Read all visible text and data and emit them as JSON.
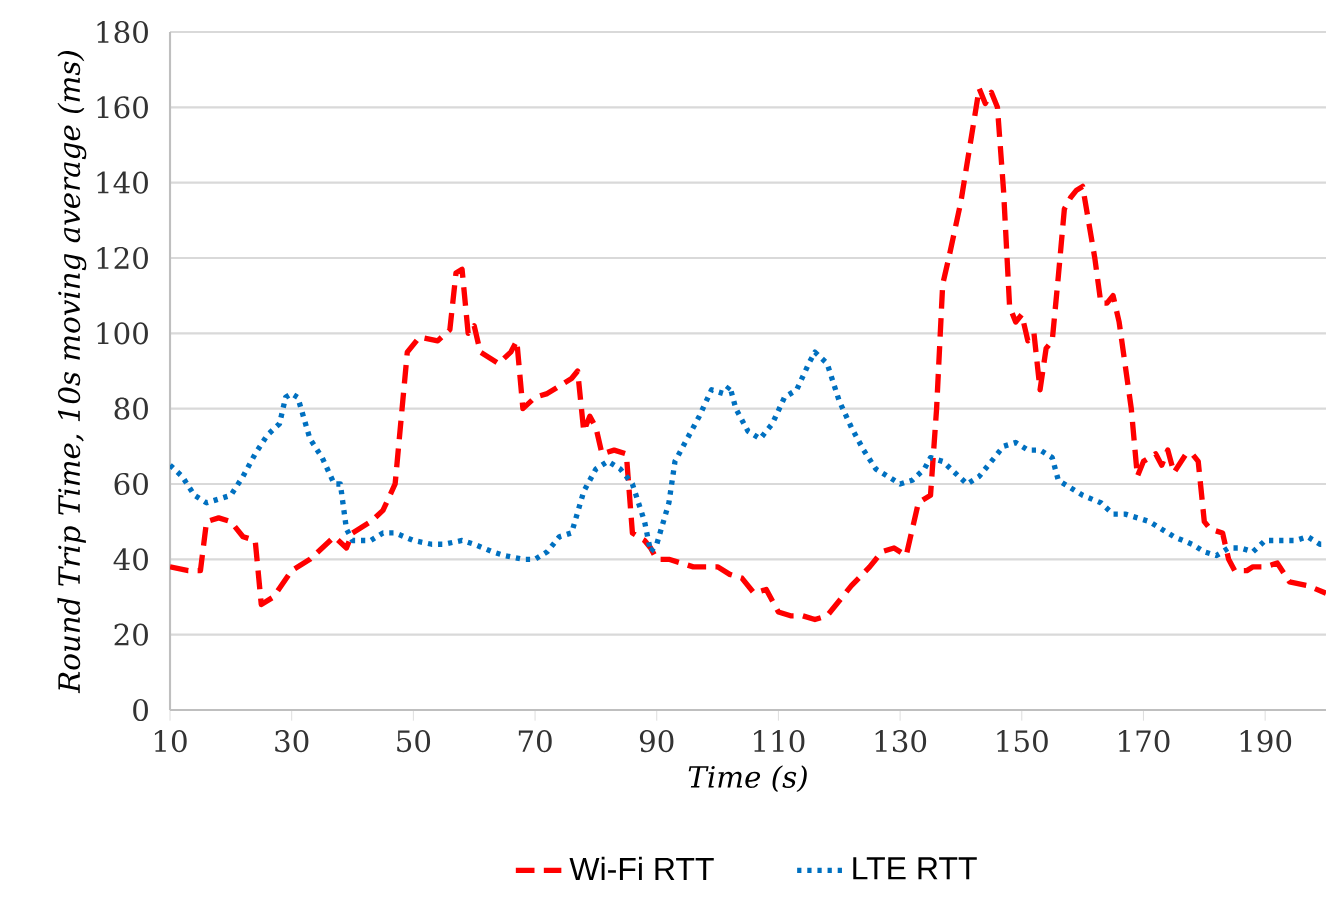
{
  "chart_data": {
    "type": "line",
    "xlabel": "Time (s)",
    "ylabel": "Round Trip Time, 10s moving average (ms)",
    "xlim": [
      10,
      200
    ],
    "xticks": [
      10,
      30,
      50,
      70,
      90,
      110,
      130,
      150,
      170,
      190
    ],
    "ylim": [
      0,
      180
    ],
    "yticks": [
      0,
      20,
      40,
      60,
      80,
      100,
      120,
      140,
      160,
      180
    ],
    "grid": "y",
    "legend": "bottom",
    "marker": "none",
    "series": [
      {
        "name": "Wi-Fi RTT",
        "color": "#ff0000",
        "line_style": "dashed",
        "x": [
          10,
          13,
          15,
          16,
          18,
          20,
          22,
          24,
          25,
          27,
          30,
          33,
          35,
          37,
          39,
          40,
          43,
          45,
          47,
          49,
          51,
          54,
          56,
          57,
          58,
          59,
          60,
          61,
          64,
          66,
          67,
          68,
          70,
          72,
          74,
          76,
          77,
          78,
          79,
          80,
          81,
          83,
          85,
          86,
          88,
          89,
          90,
          92,
          94,
          96,
          98,
          100,
          102,
          104,
          106,
          108,
          110,
          112,
          114,
          116,
          118,
          120,
          122,
          125,
          127,
          129,
          131,
          133,
          135,
          136,
          137,
          138,
          140,
          142,
          143,
          144,
          145,
          146,
          147,
          148,
          149,
          150,
          151,
          152,
          153,
          154,
          155,
          156,
          157,
          158,
          159,
          160,
          162,
          163,
          164,
          165,
          166,
          168,
          169,
          170,
          172,
          173,
          174,
          175,
          177,
          178,
          179,
          180,
          181,
          183,
          184,
          185,
          187,
          188,
          190,
          192,
          194,
          197,
          200
        ],
        "values": [
          38,
          37,
          37,
          50,
          51,
          50,
          46,
          45,
          28,
          30,
          37,
          40,
          43,
          46,
          43,
          47,
          50,
          53,
          60,
          95,
          99,
          98,
          101,
          116,
          117,
          100,
          102,
          95,
          92,
          95,
          98,
          80,
          83,
          84,
          86,
          88,
          90,
          74,
          78,
          75,
          68,
          69,
          68,
          47,
          45,
          43,
          40,
          40,
          39,
          38,
          38,
          38,
          36,
          35,
          31,
          32,
          26,
          25,
          25,
          24,
          25,
          29,
          33,
          38,
          42,
          43,
          41,
          55,
          57,
          80,
          113,
          120,
          135,
          155,
          165,
          161,
          164,
          160,
          138,
          107,
          103,
          105,
          98,
          100,
          85,
          96,
          98,
          115,
          133,
          136,
          138,
          139,
          120,
          108,
          108,
          110,
          103,
          80,
          62,
          66,
          68,
          65,
          69,
          63,
          68,
          68,
          66,
          50,
          48,
          47,
          40,
          37,
          37,
          38,
          38,
          39,
          34,
          33,
          31
        ]
      },
      {
        "name": "LTE RTT",
        "color": "#0070c0",
        "line_style": "dotted",
        "x": [
          10,
          12,
          14,
          16,
          18,
          20,
          22,
          24,
          26,
          28,
          29,
          30,
          31,
          33,
          35,
          37,
          38,
          39,
          40,
          43,
          45,
          47,
          50,
          53,
          55,
          58,
          60,
          63,
          65,
          68,
          70,
          72,
          74,
          76,
          78,
          80,
          82,
          84,
          86,
          88,
          89,
          90,
          92,
          93,
          95,
          97,
          99,
          101,
          102,
          103,
          105,
          107,
          109,
          111,
          113,
          115,
          116,
          118,
          120,
          122,
          124,
          126,
          128,
          130,
          132,
          134,
          135,
          137,
          139,
          141,
          143,
          145,
          147,
          149,
          151,
          153,
          155,
          156,
          158,
          160,
          163,
          165,
          167,
          169,
          171,
          173,
          175,
          178,
          180,
          182,
          184,
          186,
          188,
          190,
          192,
          195,
          197,
          199,
          200
        ],
        "values": [
          65,
          62,
          57,
          55,
          56,
          57,
          62,
          68,
          73,
          76,
          83,
          84,
          83,
          72,
          67,
          60,
          60,
          48,
          45,
          45,
          47,
          47,
          45,
          44,
          44,
          45,
          44,
          42,
          41,
          40,
          40,
          42,
          46,
          47,
          58,
          64,
          66,
          64,
          60,
          50,
          42,
          44,
          55,
          66,
          72,
          78,
          85,
          84,
          86,
          80,
          74,
          72,
          76,
          83,
          85,
          92,
          95,
          92,
          82,
          75,
          69,
          64,
          62,
          60,
          61,
          64,
          67,
          66,
          63,
          60,
          62,
          66,
          70,
          71,
          69,
          69,
          67,
          61,
          59,
          57,
          55,
          52,
          52,
          51,
          50,
          48,
          46,
          44,
          42,
          41,
          43,
          43,
          42,
          45,
          45,
          45,
          46,
          44,
          44
        ]
      }
    ]
  }
}
